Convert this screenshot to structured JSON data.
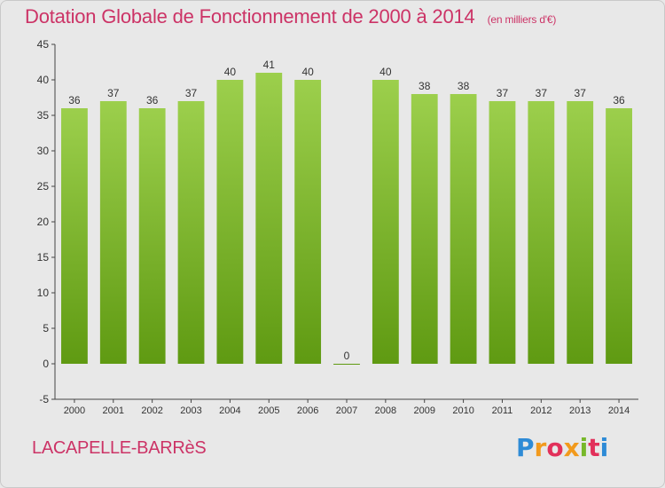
{
  "header": {
    "title": "Dotation Globale de Fonctionnement de 2000 à 2014",
    "subtitle": "(en milliers d'€)"
  },
  "footer": {
    "commune": "LACAPELLE-BARRèS",
    "logo_text": "Proxiti"
  },
  "colors": {
    "title": "#cc3366",
    "bar_light": "#9ccf4c",
    "bar_dark": "#5f9a12",
    "plot_bg": "#e8e8e8"
  },
  "chart_data": {
    "type": "bar",
    "title": "Dotation Globale de Fonctionnement de 2000 à 2014",
    "subtitle": "(en milliers d'€)",
    "categories": [
      "2000",
      "2001",
      "2002",
      "2003",
      "2004",
      "2005",
      "2006",
      "2007",
      "2008",
      "2009",
      "2010",
      "2011",
      "2012",
      "2013",
      "2014"
    ],
    "values": [
      36,
      37,
      36,
      37,
      40,
      41,
      40,
      0,
      40,
      38,
      38,
      37,
      37,
      37,
      36
    ],
    "ylim": [
      -5,
      45
    ],
    "yticks": [
      -5,
      0,
      5,
      10,
      15,
      20,
      25,
      30,
      35,
      40,
      45
    ],
    "xlabel": "",
    "ylabel": "",
    "grid": false,
    "legend": "none"
  }
}
